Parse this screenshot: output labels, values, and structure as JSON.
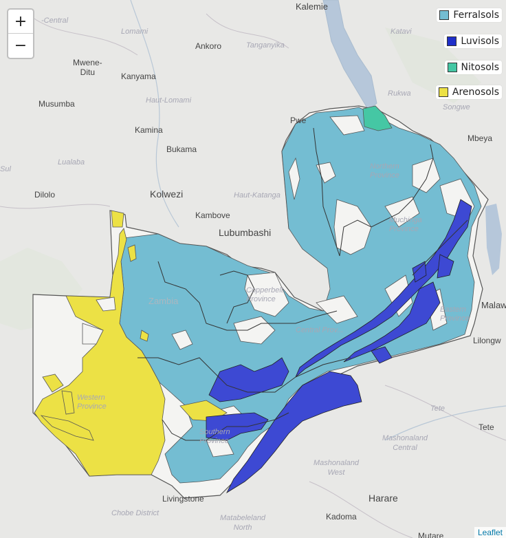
{
  "zoom": {
    "in_label": "+",
    "out_label": "−"
  },
  "legend": [
    {
      "label": "Ferralsols",
      "color": "#74bdd2"
    },
    {
      "label": "Luvisols",
      "color": "#1f2fc9"
    },
    {
      "label": "Nitosols",
      "color": "#45c7a4"
    },
    {
      "label": "Arenosols",
      "color": "#ece145"
    }
  ],
  "places": {
    "kalemie": "Kalemie",
    "katavi": "Katavi",
    "lomami": "Lomami",
    "ankoro": "Ankoro",
    "tanganyika": "Tanganyika",
    "mwene_ditu": "Mwene-\nDitu",
    "kanyama": "Kanyama",
    "musumba": "Musumba",
    "haut_lomami": "Haut-Lomami",
    "rukwa": "Rukwa",
    "songwe": "Songwe",
    "mbeya": "Mbeya",
    "kamina": "Kamina",
    "bukama": "Bukama",
    "lualaba": "Lualaba",
    "northern_province": "Northern\nProvince",
    "kolwezi": "Kolwezi",
    "haut_katanga": "Haut-Katanga",
    "dilolo": "Dilolo",
    "kambove": "Kambove",
    "lubumbashi": "Lubumbashi",
    "muchinga_province": "Muchinga\nProvince",
    "zambia": "Zambia",
    "copperbelt": "Copperbelt\nProvince",
    "central_province": "Central Prov...",
    "malawi": "Malaw",
    "lilongwe": "Lilongw",
    "eastern_province": "Eastern\nProvince",
    "western_province": "Western\nProvince",
    "southern_province": "Southern\nProvince",
    "tete_region": "Tete",
    "tete_city": "Tete",
    "mashonaland_central": "Mashonaland\nCentral",
    "mashonaland_west": "Mashonaland\nWest",
    "livingstone": "Livingstone",
    "harare": "Harare",
    "chobe_district": "Chobe District",
    "kadoma": "Kadoma",
    "matabeleland_north": "Matabeleland\nNorth",
    "mutare": "Mutare",
    "pweto": "Pwe",
    "central_left": "-Central",
    "sul": "Sul",
    "nyasa": "Nyasa"
  },
  "attribution": "Leaflet"
}
